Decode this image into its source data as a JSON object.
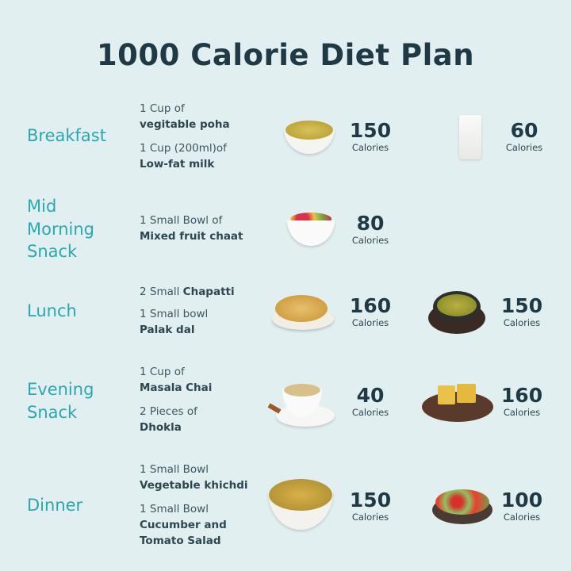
{
  "title": "1000 Calorie Diet Plan",
  "calorie_unit": "Calories",
  "meals": [
    {
      "name_lines": [
        "Breakfast"
      ],
      "items": [
        {
          "quantity": "1 Cup of",
          "food": "vegitable poha",
          "calories": "150",
          "icon": "poha-bowl-icon"
        },
        {
          "quantity": "1 Cup (200ml)of",
          "food": "Low-fat milk",
          "calories": "60",
          "icon": "milk-glass-icon"
        }
      ]
    },
    {
      "name_lines": [
        "Mid",
        "Morning",
        "Snack"
      ],
      "items": [
        {
          "quantity": "1 Small Bowl of",
          "food": "Mixed fruit chaat",
          "calories": "80",
          "icon": "fruit-chaat-bowl-icon"
        }
      ]
    },
    {
      "name_lines": [
        "Lunch"
      ],
      "items": [
        {
          "quantity": "2 Small",
          "food": "Chapatti",
          "calories": "160",
          "icon": "chapatti-plate-icon"
        },
        {
          "quantity": "1 Small bowl",
          "food": "Palak dal",
          "calories": "150",
          "icon": "dal-bowl-icon"
        }
      ]
    },
    {
      "name_lines": [
        "Evening",
        "Snack"
      ],
      "items": [
        {
          "quantity": "1 Cup of",
          "food": "Masala Chai",
          "calories": "40",
          "icon": "chai-cup-icon"
        },
        {
          "quantity": "2 Pieces of",
          "food": "Dhokla",
          "calories": "160",
          "icon": "dhokla-plate-icon"
        }
      ]
    },
    {
      "name_lines": [
        "Dinner"
      ],
      "items": [
        {
          "quantity": "1 Small Bowl",
          "food": "Vegetable khichdi",
          "calories": "150",
          "icon": "khichdi-bowl-icon"
        },
        {
          "quantity": "1 Small Bowl",
          "food": "Cucumber and Tomato Salad",
          "calories": "100",
          "icon": "salad-bowl-icon"
        }
      ]
    }
  ],
  "colors": {
    "background": "#e2eff1",
    "meal_label": "#2aa7ae",
    "title": "#1f3a45"
  }
}
